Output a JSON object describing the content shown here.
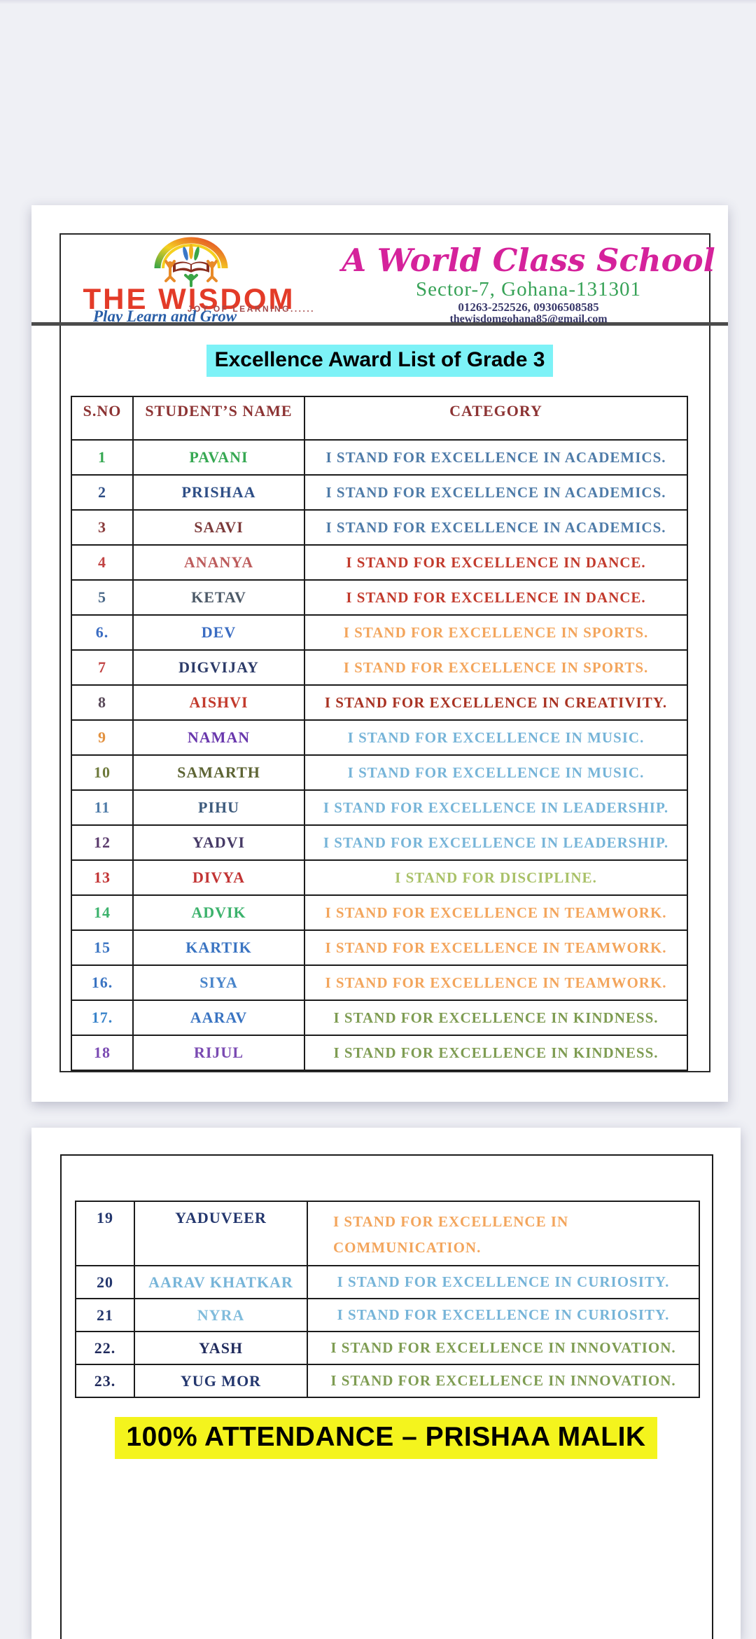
{
  "colors": {
    "cyan_highlight": "#7df2f7",
    "yellow_highlight": "#f4f41d",
    "brand_red": "#e33b28",
    "banner_pink": "#d5229b",
    "address_green": "#37a257",
    "table_header_maroon": "#8c3333"
  },
  "page1": {
    "header": {
      "logo": "the-wisdom-school-logo",
      "school_name": "THE WISDOM",
      "tagline": "JOY OF LEARNING......",
      "motto": "Play Learn and Grow",
      "banner": "A World Class School",
      "address": "Sector-7, Gohana-131301",
      "phones": "01263-252526, 09306508585",
      "email": "thewisdomgohana85@gmail.com"
    },
    "title": "Excellence Award List of Grade 3",
    "table": {
      "headers": [
        "S.NO",
        "STUDENT’S NAME",
        "CATEGORY"
      ],
      "rows": [
        {
          "sno": "1",
          "sno_color": "#36a852",
          "name": "PAVANI",
          "name_color": "#36a852",
          "category": "I STAND FOR EXCELLENCE IN ACADEMICS.",
          "category_color": "#4e7ba8"
        },
        {
          "sno": "2",
          "sno_color": "#2e4e86",
          "name": "PRISHAA",
          "name_color": "#2e4e86",
          "category": "I STAND FOR EXCELLENCE IN ACADEMICS.",
          "category_color": "#4e7ba8"
        },
        {
          "sno": "3",
          "sno_color": "#8a3c3c",
          "name": "SAAVI",
          "name_color": "#7c3a3a",
          "category": "I STAND FOR EXCELLENCE IN ACADEMICS.",
          "category_color": "#4e7ba8"
        },
        {
          "sno": "4",
          "sno_color": "#c24444",
          "name": "ANANYA",
          "name_color": "#bd5c5c",
          "category": "I STAND FOR EXCELLENCE IN DANCE.",
          "category_color": "#c23a2c"
        },
        {
          "sno": "5",
          "sno_color": "#4a6888",
          "name": "KETAV",
          "name_color": "#4d5a68",
          "category": "I STAND FOR EXCELLENCE IN DANCE.",
          "category_color": "#c23a2c"
        },
        {
          "sno": "6.",
          "sno_color": "#3a6cc2",
          "name": "DEV",
          "name_color": "#3a6cc2",
          "category": "I STAND FOR EXCELLENCE IN SPORTS.",
          "category_color": "#f3a55c"
        },
        {
          "sno": "7",
          "sno_color": "#c24444",
          "name": "DIGVIJAY",
          "name_color": "#2b3a68",
          "category": "I STAND FOR EXCELLENCE IN SPORTS.",
          "category_color": "#f3a55c"
        },
        {
          "sno": "8",
          "sno_color": "#584858",
          "name": "AISHVI",
          "name_color": "#c23a2c",
          "category": "I STAND FOR EXCELLENCE IN CREATIVITY.",
          "category_color": "#a83222"
        },
        {
          "sno": "9",
          "sno_color": "#e2913f",
          "name": "NAMAN",
          "name_color": "#6836ac",
          "category": "I STAND FOR EXCELLENCE IN MUSIC.",
          "category_color": "#76b4d8"
        },
        {
          "sno": "10",
          "sno_color": "#6e7a3c",
          "name": "SAMARTH",
          "name_color": "#5d6434",
          "category": "I STAND FOR EXCELLENCE IN MUSIC.",
          "category_color": "#76b4d8"
        },
        {
          "sno": "11",
          "sno_color": "#4e7ba8",
          "name": "PIHU",
          "name_color": "#3c5a7c",
          "category": "I STAND FOR EXCELLENCE IN LEADERSHIP.",
          "category_color": "#76b4d8"
        },
        {
          "sno": "12",
          "sno_color": "#5a3a6c",
          "name": "YADVI",
          "name_color": "#463a66",
          "category": "I STAND FOR EXCELLENCE IN LEADERSHIP.",
          "category_color": "#76b4d8"
        },
        {
          "sno": "13",
          "sno_color": "#c23333",
          "name": "DIVYA",
          "name_color": "#c23333",
          "category": "I STAND FOR DISCIPLINE.",
          "category_color": "#a9c168"
        },
        {
          "sno": "14",
          "sno_color": "#3cb26c",
          "name": "ADVIK",
          "name_color": "#3cb26c",
          "category": "I STAND FOR EXCELLENCE IN TEAMWORK.",
          "category_color": "#f3a55c"
        },
        {
          "sno": "15",
          "sno_color": "#3a74c2",
          "name": "KARTIK",
          "name_color": "#3a74c2",
          "category": "I STAND FOR EXCELLENCE IN TEAMWORK.",
          "category_color": "#f3a55c"
        },
        {
          "sno": "16.",
          "sno_color": "#3a74c2",
          "name": "SIYA",
          "name_color": "#4884ca",
          "category": "I STAND FOR EXCELLENCE IN TEAMWORK.",
          "category_color": "#f3a55c"
        },
        {
          "sno": "17.",
          "sno_color": "#3a84ca",
          "name": "AARAV",
          "name_color": "#3a74c2",
          "category": "I STAND FOR EXCELLENCE IN KINDNESS.",
          "category_color": "#7e9c52"
        },
        {
          "sno": "18",
          "sno_color": "#7a4ab2",
          "name": "RIJUL",
          "name_color": "#7a4ab2",
          "category": "I STAND FOR EXCELLENCE IN KINDNESS.",
          "category_color": "#7e9c52"
        }
      ]
    }
  },
  "page2": {
    "table": {
      "rows": [
        {
          "sno": "19",
          "sno_color": "#24376e",
          "name": "YADUVEER",
          "name_color": "#24376e",
          "category": "I STAND FOR EXCELLENCE IN\nCOMMUNICATION.",
          "category_color": "#f3a55c",
          "category_align": "left",
          "tall": true
        },
        {
          "sno": "20",
          "sno_color": "#24376e",
          "name": "AARAV KHATKAR",
          "name_color": "#76b4d8",
          "category": "I STAND FOR EXCELLENCE IN CURIOSITY.",
          "category_color": "#76b4d8"
        },
        {
          "sno": "21",
          "sno_color": "#24376e",
          "name": "NYRA",
          "name_color": "#80bcdc",
          "category": "I STAND FOR EXCELLENCE IN  CURIOSITY.",
          "category_color": "#76b4d8"
        },
        {
          "sno": "22.",
          "sno_color": "#1f2a5c",
          "name": "YASH",
          "name_color": "#1f2a5c",
          "category": "I STAND FOR EXCELLENCE IN INNOVATION.",
          "category_color": "#7e9c52"
        },
        {
          "sno": "23.",
          "sno_color": "#1f2a5c",
          "name": "YUG MOR",
          "name_color": "#24376e",
          "category": "I STAND FOR EXCELLENCE IN  INNOVATION.",
          "category_color": "#7e9c52"
        }
      ]
    },
    "attendance_note": "100% ATTENDANCE – PRISHAA MALIK"
  }
}
